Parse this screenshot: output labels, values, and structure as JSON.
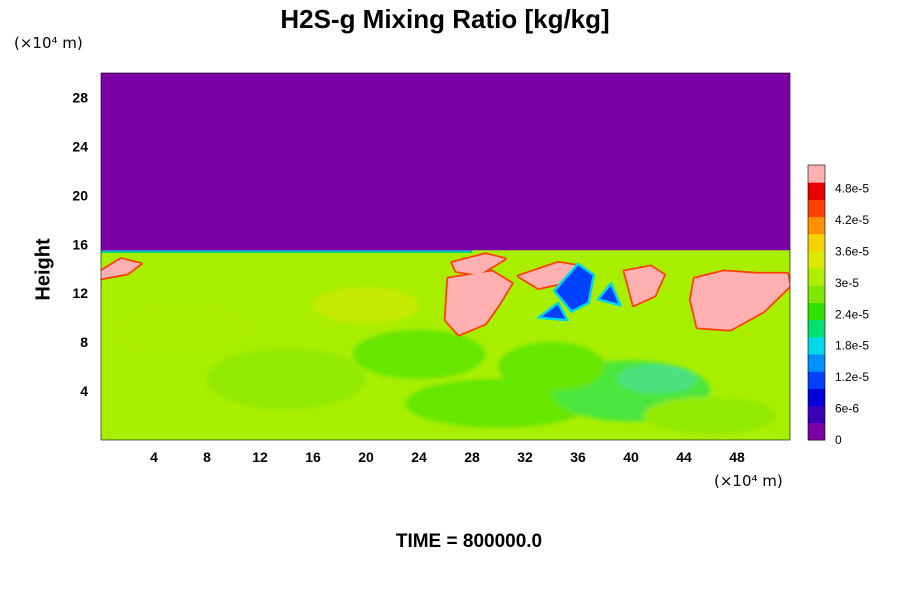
{
  "chart_data": {
    "type": "heatmap",
    "title": "H2S-g Mixing Ratio [kg/kg]",
    "ylabel": "Height",
    "y_units": "(×10⁴ m)",
    "x_units": "(×10⁴ m)",
    "footer": "TIME = 800000.0",
    "xlim": [
      0,
      52
    ],
    "ylim": [
      0,
      30
    ],
    "x_ticks": [
      "4",
      "8",
      "12",
      "16",
      "20",
      "24",
      "28",
      "32",
      "36",
      "40",
      "44",
      "48"
    ],
    "y_ticks": [
      "4",
      "8",
      "12",
      "16",
      "20",
      "24",
      "28"
    ],
    "x_tick_values": [
      4,
      8,
      12,
      16,
      20,
      24,
      28,
      32,
      36,
      40,
      44,
      48
    ],
    "y_tick_values": [
      4,
      8,
      12,
      16,
      20,
      24,
      28
    ],
    "colorbar": {
      "min": 0,
      "max": 5.25e-05,
      "tick_labels": [
        "0",
        "6e-6",
        "1.2e-5",
        "1.8e-5",
        "2.4e-5",
        "3e-5",
        "3.6e-5",
        "4.2e-5",
        "4.8e-5"
      ],
      "tick_values": [
        0,
        6e-06,
        1.2e-05,
        1.8e-05,
        2.4e-05,
        3e-05,
        3.6e-05,
        4.2e-05,
        4.8e-05
      ],
      "colors": [
        "#7a00a6",
        "#3a00b8",
        "#0000d8",
        "#0040ff",
        "#0090ff",
        "#00d8e8",
        "#00e070",
        "#30e000",
        "#80e800",
        "#b0ee00",
        "#dde800",
        "#f6d000",
        "#ff9000",
        "#ff4000",
        "#e80000",
        "#ffb0b0"
      ]
    },
    "regions": [
      {
        "name": "upper-layer",
        "value": 0,
        "color": "#7a00a6",
        "x": [
          0,
          52
        ],
        "y": [
          15.5,
          30
        ]
      },
      {
        "name": "lower-layer",
        "value": 3.1e-05,
        "color": "#a8ee00",
        "x": [
          0,
          52
        ],
        "y": [
          0,
          15.5
        ]
      },
      {
        "name": "plume-band",
        "value": 5e-05,
        "color": "#ffb0b0",
        "x": [
          26,
          52
        ],
        "y": [
          8,
          15
        ]
      }
    ]
  }
}
